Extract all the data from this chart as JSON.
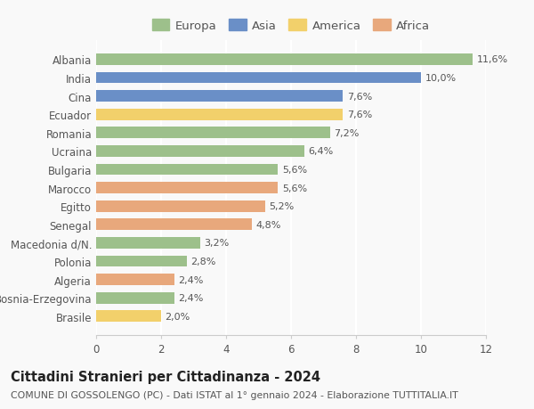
{
  "countries": [
    "Brasile",
    "Bosnia-Erzegovina",
    "Algeria",
    "Polonia",
    "Macedonia d/N.",
    "Senegal",
    "Egitto",
    "Marocco",
    "Bulgaria",
    "Ucraina",
    "Romania",
    "Ecuador",
    "Cina",
    "India",
    "Albania"
  ],
  "values": [
    2.0,
    2.4,
    2.4,
    2.8,
    3.2,
    4.8,
    5.2,
    5.6,
    5.6,
    6.4,
    7.2,
    7.6,
    7.6,
    10.0,
    11.6
  ],
  "labels": [
    "2,0%",
    "2,4%",
    "2,4%",
    "2,8%",
    "3,2%",
    "4,8%",
    "5,2%",
    "5,6%",
    "5,6%",
    "6,4%",
    "7,2%",
    "7,6%",
    "7,6%",
    "10,0%",
    "11,6%"
  ],
  "continents": [
    "America",
    "Europa",
    "Africa",
    "Europa",
    "Europa",
    "Africa",
    "Africa",
    "Africa",
    "Europa",
    "Europa",
    "Europa",
    "America",
    "Asia",
    "Asia",
    "Europa"
  ],
  "colors": {
    "Europa": "#9DC08B",
    "Asia": "#6A8FC7",
    "America": "#F2D06B",
    "Africa": "#E8A87C"
  },
  "legend_order": [
    "Europa",
    "Asia",
    "America",
    "Africa"
  ],
  "title": "Cittadini Stranieri per Cittadinanza - 2024",
  "subtitle": "COMUNE DI GOSSOLENGO (PC) - Dati ISTAT al 1° gennaio 2024 - Elaborazione TUTTITALIA.IT",
  "xlim": [
    0,
    12
  ],
  "xticks": [
    0,
    2,
    4,
    6,
    8,
    10,
    12
  ],
  "background_color": "#f9f9f9",
  "bar_height": 0.62,
  "title_fontsize": 10.5,
  "subtitle_fontsize": 7.8,
  "tick_fontsize": 8.5,
  "label_fontsize": 8.0,
  "legend_fontsize": 9.5
}
